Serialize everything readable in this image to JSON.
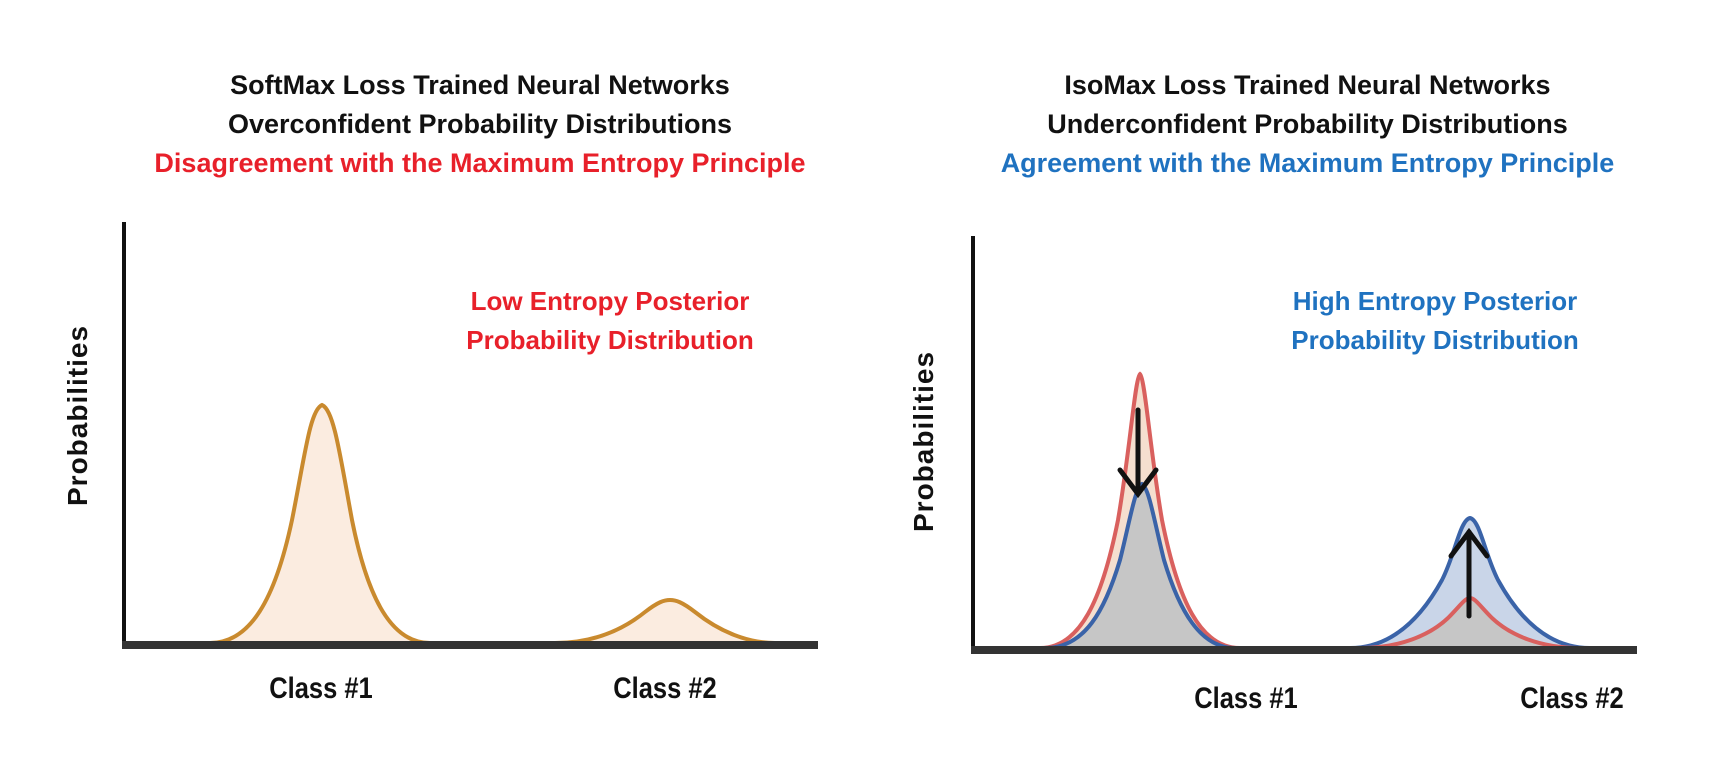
{
  "left": {
    "title_lines": [
      "SoftMax Loss Trained Neural Networks",
      "Overconfident Probability Distributions",
      "Disagreement with the Maximum Entropy Principle"
    ],
    "annotation_lines": [
      "Low Entropy Posterior",
      "Probability Distribution"
    ],
    "y_label": "Probabilities",
    "x_labels": [
      "Class #1",
      "Class #2"
    ],
    "colors": {
      "accent": "#e8202a",
      "curve": "#c98a2e",
      "fill": "#fbece0"
    }
  },
  "right": {
    "title_lines": [
      "IsoMax Loss Trained Neural Networks",
      "Underconfident Probability Distributions",
      "Agreement with the Maximum Entropy Principle"
    ],
    "annotation_lines": [
      "High Entropy Posterior",
      "Probability Distribution"
    ],
    "y_label": "Probabilities",
    "x_labels": [
      "Class #1",
      "Class #2"
    ],
    "colors": {
      "accent": "#1f72c0",
      "softmax_curve": "#d9605e",
      "isomax_curve": "#3a63a8",
      "softmax_fill": "#f5dfcf",
      "isomax_fill": "#c9d5e8",
      "overlap_fill": "#c6c6c6"
    }
  }
}
